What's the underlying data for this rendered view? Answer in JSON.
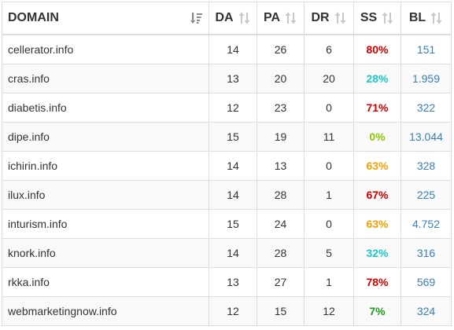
{
  "columns": {
    "domain": "DOMAIN",
    "da": "DA",
    "pa": "PA",
    "dr": "DR",
    "ss": "SS",
    "bl": "BL"
  },
  "icons": {
    "sort_active": "sort-desc-icon",
    "sort_inactive": "sort-both-icon"
  },
  "colors": {
    "link": "#3a7fb5",
    "ss_red": "#cc0000",
    "ss_cyan": "#1ec8c8",
    "ss_green_light": "#8cc800",
    "ss_orange": "#f0a000",
    "ss_green": "#1a9a1a"
  },
  "rows": [
    {
      "domain": "cellerator.info",
      "da": "14",
      "pa": "26",
      "dr": "6",
      "ss": "80%",
      "ss_color": "#cc0000",
      "bl": "151"
    },
    {
      "domain": "cras.info",
      "da": "13",
      "pa": "20",
      "dr": "20",
      "ss": "28%",
      "ss_color": "#1ec8c8",
      "bl": "1.959"
    },
    {
      "domain": "diabetis.info",
      "da": "12",
      "pa": "23",
      "dr": "0",
      "ss": "71%",
      "ss_color": "#cc0000",
      "bl": "322"
    },
    {
      "domain": "dipe.info",
      "da": "15",
      "pa": "19",
      "dr": "11",
      "ss": "0%",
      "ss_color": "#8cc800",
      "bl": "13.044"
    },
    {
      "domain": "ichirin.info",
      "da": "14",
      "pa": "13",
      "dr": "0",
      "ss": "63%",
      "ss_color": "#f0a000",
      "bl": "328"
    },
    {
      "domain": "ilux.info",
      "da": "14",
      "pa": "28",
      "dr": "1",
      "ss": "67%",
      "ss_color": "#cc0000",
      "bl": "225"
    },
    {
      "domain": "inturism.info",
      "da": "15",
      "pa": "24",
      "dr": "0",
      "ss": "63%",
      "ss_color": "#f0a000",
      "bl": "4.752"
    },
    {
      "domain": "knork.info",
      "da": "14",
      "pa": "28",
      "dr": "5",
      "ss": "32%",
      "ss_color": "#1ec8c8",
      "bl": "316"
    },
    {
      "domain": "rkka.info",
      "da": "13",
      "pa": "27",
      "dr": "1",
      "ss": "78%",
      "ss_color": "#cc0000",
      "bl": "569"
    },
    {
      "domain": "webmarketingnow.info",
      "da": "12",
      "pa": "15",
      "dr": "12",
      "ss": "7%",
      "ss_color": "#1a9a1a",
      "bl": "324"
    }
  ]
}
